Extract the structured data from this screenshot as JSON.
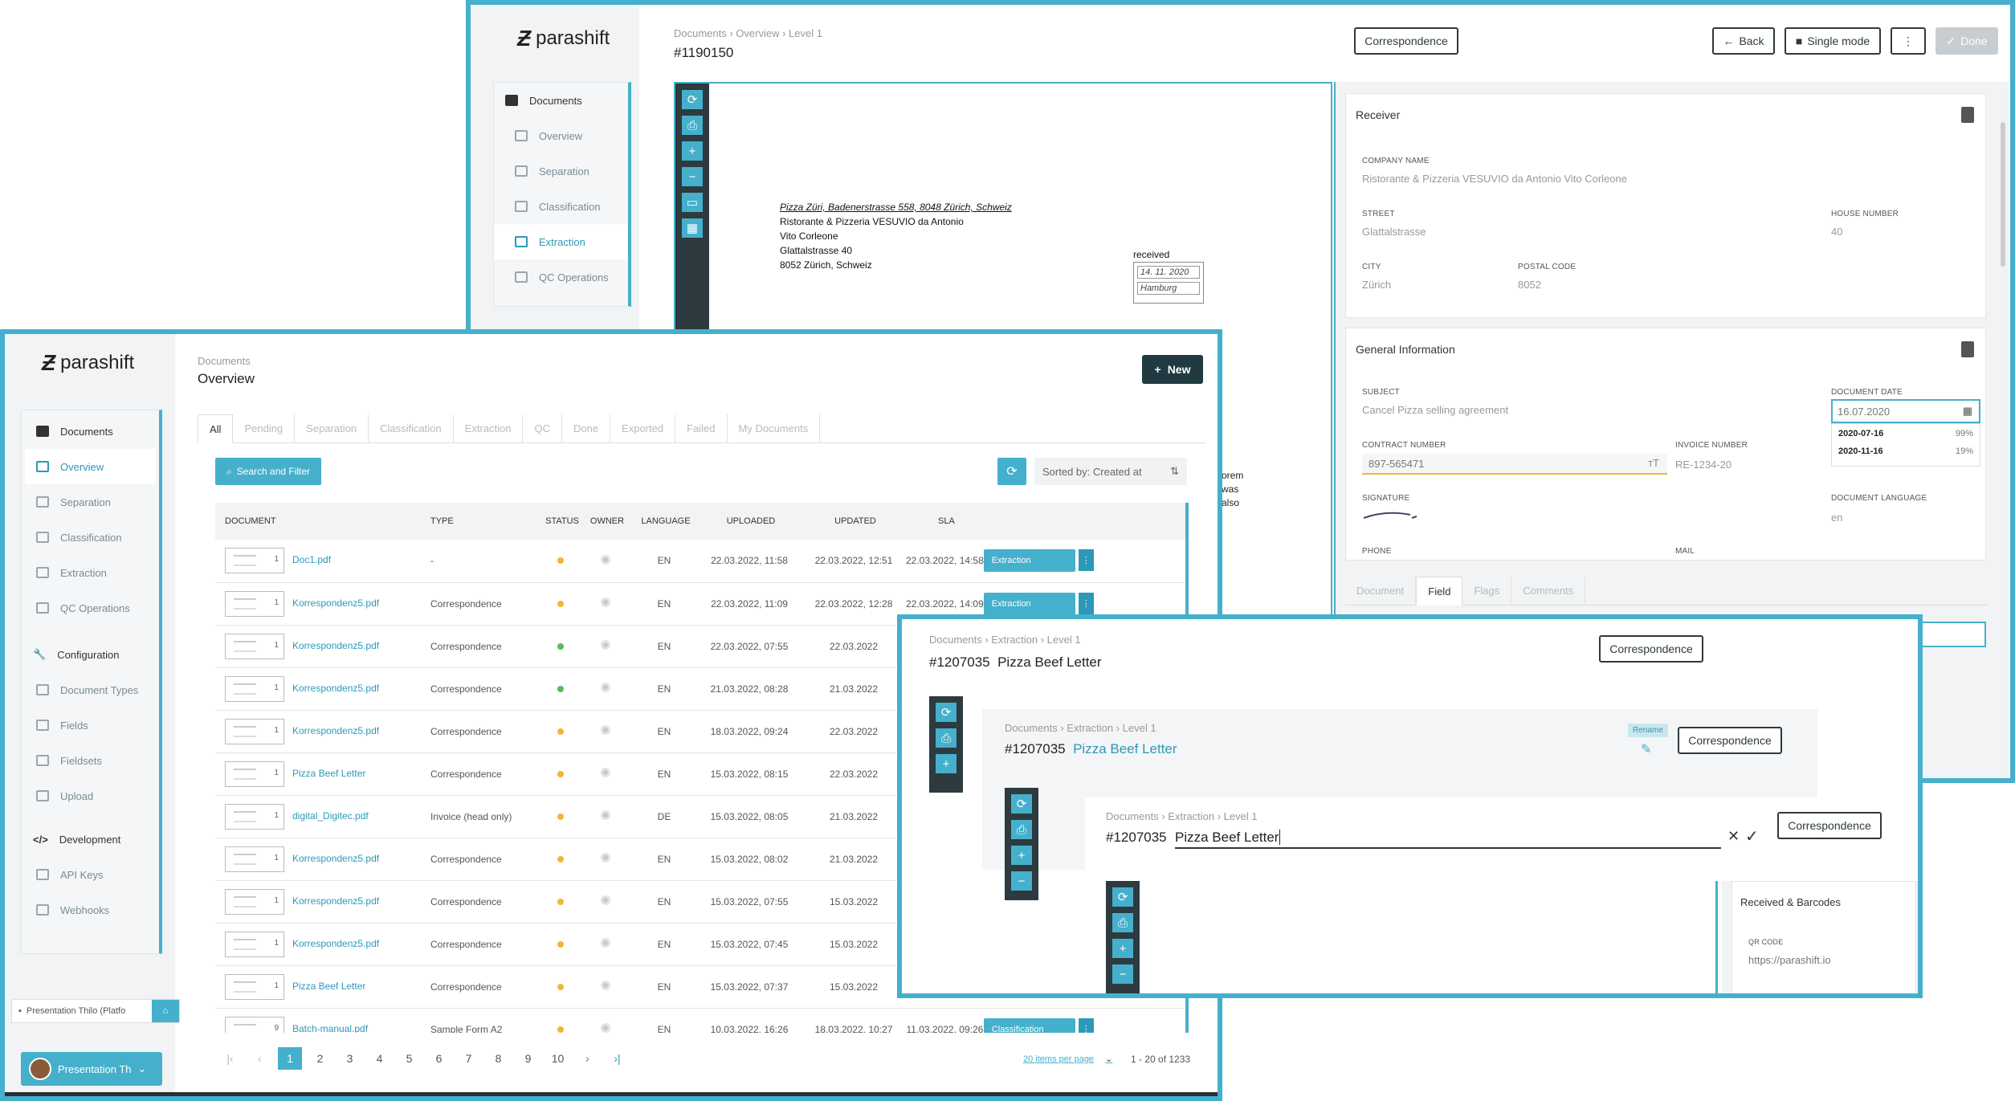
{
  "top": {
    "logo": "parashift",
    "nav": [
      {
        "label": "Documents",
        "icon": "document-icon"
      },
      {
        "label": "Overview",
        "icon": "document-icon"
      },
      {
        "label": "Separation",
        "icon": "separation-icon"
      },
      {
        "label": "Classification",
        "icon": "tag-icon"
      },
      {
        "label": "Extraction",
        "icon": "list-icon"
      },
      {
        "label": "QC Operations",
        "icon": "list-check-icon"
      }
    ],
    "breadcrumb": "Documents › Overview › Level 1",
    "title": "#1190150",
    "doc_type": "Correspondence",
    "back": "Back",
    "single_mode": "Single mode",
    "done": "Done",
    "letter": {
      "sender": "Pizza Züri, Badenerstrasse 558, 8048 Zürich, Schweiz",
      "lines": [
        "Ristorante & Pizzeria VESUVIO da Antonio",
        "Vito Corleone",
        "Glattalstrasse 40",
        "8052 Zürich, Schweiz"
      ],
      "received": "received",
      "stamp_date": "14. 11. 2020",
      "stamp_place": "Hamburg"
    },
    "receiver": {
      "title": "Receiver",
      "company_label": "COMPANY NAME",
      "company": "Ristorante & Pizzeria VESUVIO da Antonio Vito Corleone",
      "street_label": "STREET",
      "street": "Glattalstrasse",
      "house_label": "HOUSE NUMBER",
      "house": "40",
      "city_label": "CITY",
      "city": "Zürich",
      "postal_label": "POSTAL CODE",
      "postal": "8052"
    },
    "general": {
      "title": "General Information",
      "subject_label": "SUBJECT",
      "subject": "Cancel Pizza selling agreement",
      "date_label": "DOCUMENT DATE",
      "date": "16.07.2020",
      "sugg1": "2020-07-16",
      "sugg1_pct": "99%",
      "sugg2": "2020-11-16",
      "sugg2_pct": "19%",
      "contract_label": "CONTRACT NUMBER",
      "contract": "897-565471",
      "invoice_label": "INVOICE NUMBER",
      "invoice": "RE-1234-20",
      "signature_label": "SIGNATURE",
      "lang_label": "DOCUMENT LANGUAGE",
      "lang": "en",
      "phone_label": "PHONE",
      "mail_label": "MAIL"
    },
    "tabs": [
      "Document",
      "Field",
      "Flags",
      "Comments"
    ],
    "snippet": [
      "orem",
      "was",
      "also"
    ]
  },
  "main": {
    "logo": "parashift",
    "nav": [
      {
        "label": "Documents",
        "head": true
      },
      {
        "label": "Overview",
        "active": true
      },
      {
        "label": "Separation"
      },
      {
        "label": "Classification"
      },
      {
        "label": "Extraction"
      },
      {
        "label": "QC Operations"
      }
    ],
    "config": {
      "label": "Configuration",
      "items": [
        "Document Types",
        "Fields",
        "Fieldsets",
        "Upload"
      ]
    },
    "dev": {
      "label": "Development",
      "items": [
        "API Keys",
        "Webhooks"
      ]
    },
    "workspace": "Presentation Thilo (Platfo",
    "user": "Presentation Th",
    "breadcrumb": "Documents",
    "title": "Overview",
    "new_btn": "New",
    "tabs": [
      "All",
      "Pending",
      "Separation",
      "Classification",
      "Extraction",
      "QC",
      "Done",
      "Exported",
      "Failed",
      "My Documents"
    ],
    "search": "Search and Filter",
    "sort": "Sorted by: Created at",
    "columns": [
      "DOCUMENT",
      "TYPE",
      "STATUS",
      "OWNER",
      "LANGUAGE",
      "UPLOADED",
      "UPDATED",
      "SLA"
    ],
    "rows": [
      {
        "pages": "1",
        "name": "Doc1.pdf",
        "type": "-",
        "status": "#f2b630",
        "lang": "EN",
        "uploaded": "22.03.2022, 11:58",
        "updated": "22.03.2022, 12:51",
        "sla": "22.03.2022, 14:58",
        "action": "Extraction"
      },
      {
        "pages": "1",
        "name": "Korrespondenz5.pdf",
        "type": "Correspondence",
        "status": "#f2b630",
        "lang": "EN",
        "uploaded": "22.03.2022, 11:09",
        "updated": "22.03.2022, 12:28",
        "sla": "22.03.2022, 14:09",
        "action": "Extraction"
      },
      {
        "pages": "1",
        "name": "Korrespondenz5.pdf",
        "type": "Correspondence",
        "status": "#5cb85c",
        "lang": "EN",
        "uploaded": "22.03.2022, 07:55",
        "updated": "22.03.2022",
        "sla": "",
        "action": ""
      },
      {
        "pages": "1",
        "name": "Korrespondenz5.pdf",
        "type": "Correspondence",
        "status": "#5cb85c",
        "lang": "EN",
        "uploaded": "21.03.2022, 08:28",
        "updated": "21.03.2022",
        "sla": "",
        "action": ""
      },
      {
        "pages": "1",
        "name": "Korrespondenz5.pdf",
        "type": "Correspondence",
        "status": "#f2b630",
        "lang": "EN",
        "uploaded": "18.03.2022, 09:24",
        "updated": "22.03.2022",
        "sla": "",
        "action": ""
      },
      {
        "pages": "1",
        "name": "Pizza Beef Letter",
        "type": "Correspondence",
        "status": "#f2b630",
        "lang": "EN",
        "uploaded": "15.03.2022, 08:15",
        "updated": "22.03.2022",
        "sla": "",
        "action": ""
      },
      {
        "pages": "1",
        "name": "digital_Digitec.pdf",
        "type": "Invoice (head only)",
        "status": "#f2b630",
        "lang": "DE",
        "uploaded": "15.03.2022, 08:05",
        "updated": "21.03.2022",
        "sla": "",
        "action": ""
      },
      {
        "pages": "1",
        "name": "Korrespondenz5.pdf",
        "type": "Correspondence",
        "status": "#f2b630",
        "lang": "EN",
        "uploaded": "15.03.2022, 08:02",
        "updated": "21.03.2022",
        "sla": "",
        "action": ""
      },
      {
        "pages": "1",
        "name": "Korrespondenz5.pdf",
        "type": "Correspondence",
        "status": "#f2b630",
        "lang": "EN",
        "uploaded": "15.03.2022, 07:55",
        "updated": "15.03.2022",
        "sla": "",
        "action": ""
      },
      {
        "pages": "1",
        "name": "Korrespondenz5.pdf",
        "type": "Correspondence",
        "status": "#f2b630",
        "lang": "EN",
        "uploaded": "15.03.2022, 07:45",
        "updated": "15.03.2022",
        "sla": "",
        "action": ""
      },
      {
        "pages": "1",
        "name": "Pizza Beef Letter",
        "type": "Correspondence",
        "status": "#f2b630",
        "lang": "EN",
        "uploaded": "15.03.2022, 07:37",
        "updated": "15.03.2022",
        "sla": "",
        "action": ""
      },
      {
        "pages": "9",
        "name": "Batch-manual.pdf",
        "type": "Sample Form A2",
        "status": "#f2b630",
        "lang": "EN",
        "uploaded": "10.03.2022, 16:26",
        "updated": "18.03.2022, 10:27",
        "sla": "11.03.2022, 09:26",
        "action": "Classification"
      }
    ],
    "pages": [
      "1",
      "2",
      "3",
      "4",
      "5",
      "6",
      "7",
      "8",
      "9",
      "10"
    ],
    "per_page": "20 items per page",
    "range": "1 - 20",
    "range_of": "of 1233"
  },
  "rename": {
    "crumb": "Documents › Extraction › Level 1",
    "id": "#1207035",
    "name": "Pizza Beef Letter",
    "doc_type": "Correspondence",
    "tooltip": "Rename",
    "panel_title": "Received & Barcodes",
    "qr_label": "QR CODE",
    "qr_value": "https://parashift.io"
  }
}
